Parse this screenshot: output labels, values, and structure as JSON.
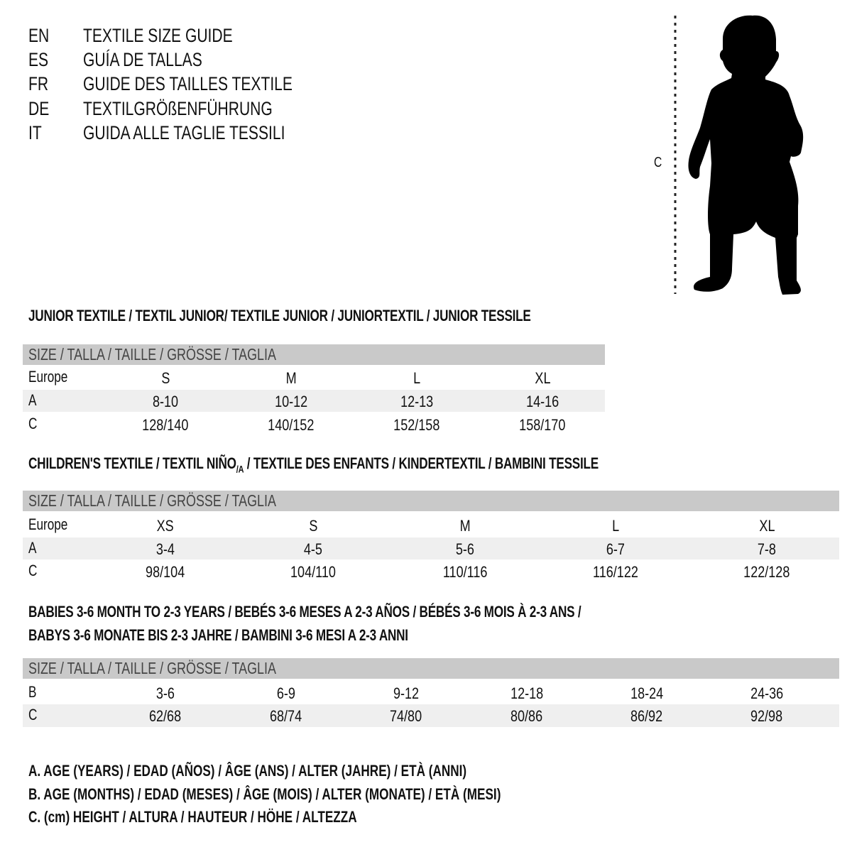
{
  "guide_titles": [
    {
      "lang": "EN",
      "title": "TEXTILE SIZE GUIDE"
    },
    {
      "lang": "ES",
      "title": "GUÍA DE TALLAS"
    },
    {
      "lang": "FR",
      "title": "GUIDE DES TAILLES TEXTILE"
    },
    {
      "lang": "DE",
      "title": "TEXTILGRÖßENFÜHRUNG"
    },
    {
      "lang": "IT",
      "title": "GUIDA ALLE TAGLIE TESSILI"
    }
  ],
  "figure": {
    "measure_label": "C",
    "icon": "baby-silhouette-icon"
  },
  "size_header": "SIZE / TALLA / TAILLE / GRÖSSE / TAGLIA",
  "junior": {
    "title": "JUNIOR TEXTILE / TEXTIL JUNIOR/ TEXTILE JUNIOR / JUNIORTEXTIL / JUNIOR TESSILE",
    "rows": [
      {
        "label": "Europe",
        "values": [
          "S",
          "M",
          "L",
          "XL"
        ]
      },
      {
        "label": "A",
        "values": [
          "8-10",
          "10-12",
          "12-13",
          "14-16"
        ]
      },
      {
        "label": "C",
        "values": [
          "128/140",
          "140/152",
          "152/158",
          "158/170"
        ]
      }
    ]
  },
  "children": {
    "title_pre": "CHILDREN'S TEXTILE / TEXTIL NIÑO",
    "title_sub": "/A",
    "title_post": " / TEXTILE DES ENFANTS / KINDERTEXTIL / BAMBINI TESSILE",
    "rows": [
      {
        "label": "Europe",
        "values": [
          "XS",
          "S",
          "M",
          "L",
          "XL"
        ]
      },
      {
        "label": "A",
        "values": [
          "3-4",
          "4-5",
          "5-6",
          "6-7",
          "7-8"
        ]
      },
      {
        "label": "C",
        "values": [
          "98/104",
          "104/110",
          "110/116",
          "116/122",
          "122/128"
        ]
      }
    ]
  },
  "babies": {
    "title_line1": "BABIES 3-6 MONTH TO 2-3 YEARS / BEBÉS 3-6 MESES A 2-3 AÑOS / BÉBÉS 3-6 MOIS À 2-3 ANS /",
    "title_line2": "BABYS 3-6 MONATE BIS 2-3 JAHRE / BAMBINI 3-6 MESI A 2-3 ANNI",
    "rows": [
      {
        "label": "B",
        "values": [
          "3-6",
          "6-9",
          "9-12",
          "12-18",
          "18-24",
          "24-36"
        ]
      },
      {
        "label": "C",
        "values": [
          "62/68",
          "68/74",
          "74/80",
          "80/86",
          "86/92",
          "92/98"
        ]
      }
    ]
  },
  "legend": [
    "A. AGE (YEARS) / EDAD (AÑOS) / ÂGE (ANS) / ALTER (JAHRE) / ETÀ (ANNI)",
    "B. AGE (MONTHS) / EDAD (MESES) / ÂGE (MOIS) / ALTER (MONATE) / ETÀ (MESI)",
    "C. (cm) HEIGHT / ALTURA / HAUTEUR / HÖHE / ALTEZZA"
  ],
  "colors": {
    "header_bar": "#c9c9c9",
    "shaded_row": "#efefef",
    "text": "#111111"
  }
}
